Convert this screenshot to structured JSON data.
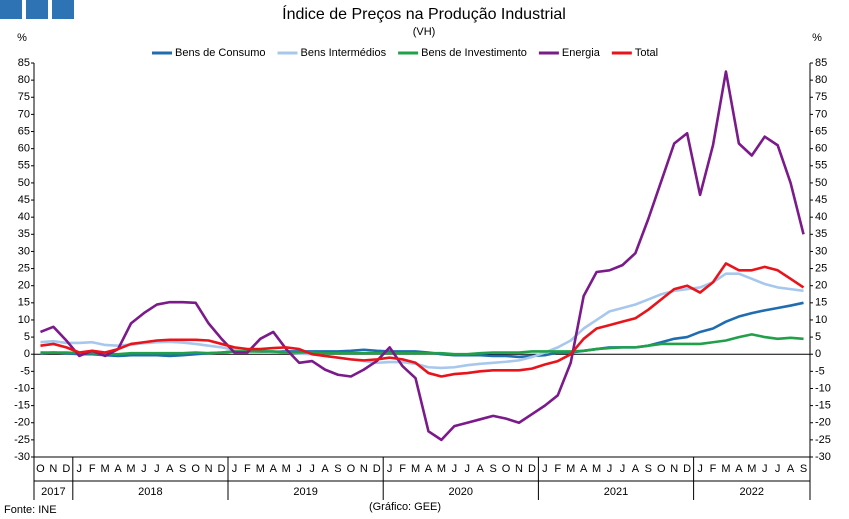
{
  "chart_data": {
    "type": "line",
    "title": "Índice de Preços na Produção Industrial",
    "subtitle": "(VH)",
    "y_unit": "%",
    "source": "Fonte: INE",
    "credit": "(Gráfico: GEE)",
    "categories": [
      "O",
      "N",
      "D",
      "J",
      "F",
      "M",
      "A",
      "M",
      "J",
      "J",
      "A",
      "S",
      "O",
      "N",
      "D",
      "J",
      "F",
      "M",
      "A",
      "M",
      "J",
      "J",
      "A",
      "S",
      "O",
      "N",
      "D",
      "J",
      "F",
      "M",
      "A",
      "M",
      "J",
      "J",
      "A",
      "S",
      "O",
      "N",
      "D",
      "J",
      "F",
      "M",
      "A",
      "M",
      "J",
      "J",
      "A",
      "S",
      "O",
      "N",
      "D",
      "J",
      "F",
      "M",
      "A",
      "M",
      "J",
      "J",
      "A",
      "S"
    ],
    "x_groups": [
      {
        "label": "2017",
        "months": 3
      },
      {
        "label": "2018",
        "months": 12
      },
      {
        "label": "2019",
        "months": 12
      },
      {
        "label": "2020",
        "months": 12
      },
      {
        "label": "2021",
        "months": 12
      },
      {
        "label": "2022",
        "months": 9
      }
    ],
    "ylim": [
      -30,
      85
    ],
    "yticks": [
      -30,
      -25,
      -20,
      -15,
      -10,
      -5,
      0,
      5,
      10,
      15,
      20,
      25,
      30,
      35,
      40,
      45,
      50,
      55,
      60,
      65,
      70,
      75,
      80,
      85
    ],
    "series": [
      {
        "name": "Bens de Consumo",
        "color": "#1f6db0",
        "values": [
          0.3,
          0.5,
          0.3,
          0,
          0,
          -0.3,
          -0.5,
          -0.3,
          -0.3,
          -0.3,
          -0.5,
          -0.3,
          0,
          0.3,
          0.5,
          0.8,
          1,
          0.8,
          0.7,
          0.8,
          0.8,
          0.8,
          0.8,
          0.8,
          1,
          1.3,
          1,
          0.8,
          0.8,
          0.8,
          0.5,
          0,
          -0.3,
          -0.3,
          -0.3,
          -0.5,
          -0.5,
          -0.8,
          -0.5,
          -0.3,
          0.5,
          0.5,
          1,
          1.5,
          2,
          2,
          2,
          2.5,
          3.5,
          4.5,
          5,
          6.5,
          7.5,
          9.5,
          11,
          12,
          12.8,
          13.5,
          14.2,
          15
        ]
      },
      {
        "name": "Bens Intermédios",
        "color": "#a7c8ec",
        "values": [
          3.5,
          3.8,
          3.3,
          3.3,
          3.5,
          2.7,
          2.5,
          2.8,
          3.2,
          3.5,
          3.6,
          3.4,
          3,
          2.5,
          2,
          1.3,
          1,
          0.8,
          0.7,
          0.5,
          0.2,
          0,
          -0.5,
          -1,
          -1.5,
          -2,
          -2.5,
          -2.3,
          -2.3,
          -2.8,
          -3.8,
          -4,
          -3.8,
          -3.2,
          -2.8,
          -2.5,
          -2.2,
          -1.8,
          -0.8,
          0.5,
          2,
          4,
          7.5,
          10,
          12.5,
          13.5,
          14.5,
          16,
          17.5,
          18.5,
          19,
          19.5,
          21,
          23.5,
          23.5,
          22,
          20.5,
          19.5,
          19,
          18.5
        ]
      },
      {
        "name": "Bens de Investimento",
        "color": "#21a04a",
        "values": [
          0.5,
          0.5,
          0.5,
          0.3,
          0.3,
          0,
          0,
          0.3,
          0.3,
          0.3,
          0.3,
          0.3,
          0.5,
          0.3,
          0.5,
          0.8,
          0.8,
          0.8,
          0.8,
          0.5,
          0.5,
          0.5,
          0.3,
          0.3,
          0.3,
          0.3,
          0.3,
          0.3,
          0.3,
          0.3,
          0.3,
          0.3,
          0,
          0,
          0.3,
          0.5,
          0.5,
          0.5,
          0.8,
          0.8,
          0.8,
          0.8,
          1,
          1.5,
          1.8,
          2,
          2,
          2.5,
          3,
          3,
          3,
          3,
          3.5,
          4,
          5,
          5.8,
          5,
          4.5,
          4.8,
          4.5
        ]
      },
      {
        "name": "Energia",
        "color": "#7b1a8a",
        "values": [
          6.5,
          8,
          4,
          -0.5,
          1,
          -0.5,
          1.5,
          9,
          12,
          14.5,
          15.2,
          15.2,
          15,
          9,
          4.5,
          0.5,
          0.5,
          4.5,
          6.5,
          1.5,
          -2.5,
          -2,
          -4.5,
          -6,
          -6.5,
          -4.5,
          -2,
          2,
          -3.5,
          -7,
          -22.5,
          -25,
          -21,
          -20,
          -19,
          -18,
          -18.8,
          -20,
          -17.5,
          -15,
          -12,
          -2.5,
          17,
          24,
          24.5,
          26,
          29.5,
          39.5,
          50.5,
          61.5,
          64.5,
          46.5,
          61,
          82.5,
          61.5,
          58,
          63.5,
          61,
          50,
          35
        ]
      },
      {
        "name": "Total",
        "color": "#e8141b",
        "values": [
          2.5,
          3,
          2,
          0.5,
          1,
          0.5,
          1.5,
          3,
          3.5,
          4,
          4.2,
          4.2,
          4.2,
          4,
          3,
          2,
          1.5,
          1.5,
          1.8,
          2,
          1.5,
          0,
          -0.5,
          -1,
          -1.5,
          -1.8,
          -1.5,
          -1,
          -1.5,
          -2.5,
          -5.5,
          -6.5,
          -5.8,
          -5.5,
          -5,
          -4.7,
          -4.7,
          -4.7,
          -4.2,
          -3,
          -2,
          0,
          4.5,
          7.5,
          8.5,
          9.5,
          10.5,
          13,
          16,
          19,
          20,
          18,
          21,
          26.5,
          24.5,
          24.5,
          25.5,
          24.5,
          22,
          19.5
        ]
      }
    ]
  }
}
